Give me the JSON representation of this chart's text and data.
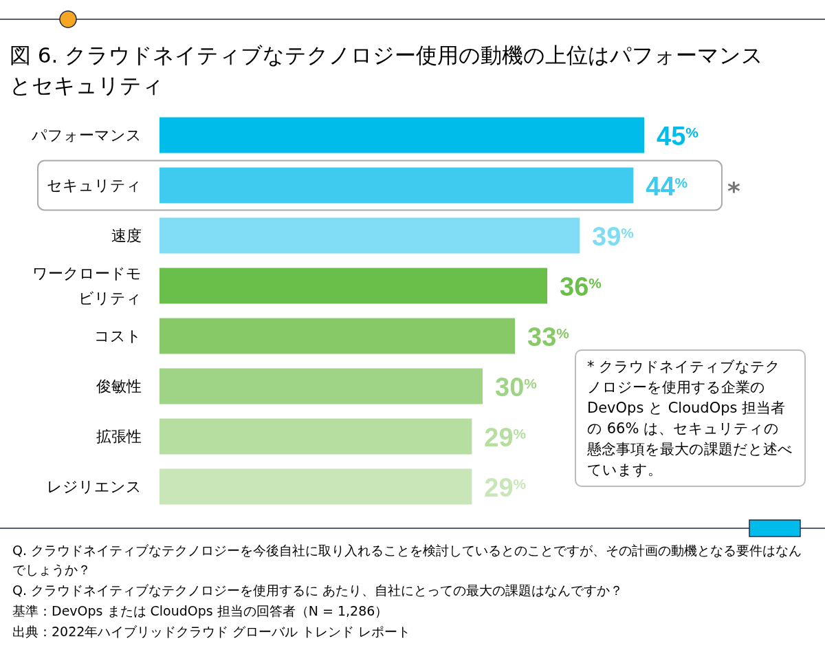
{
  "chart_data": {
    "type": "bar",
    "orientation": "horizontal",
    "title": "図 6. クラウドネイティブなテクノロジー使用の動機の上位はパフォーマンスとセキュリティ",
    "categories": [
      "パフォーマンス",
      "セキュリティ",
      "速度",
      "ワークロードモビリティ",
      "コスト",
      "俊敏性",
      "拡張性",
      "レジリエンス"
    ],
    "values": [
      45,
      44,
      39,
      36,
      33,
      30,
      29,
      29
    ],
    "value_labels": [
      "45$^{%}$",
      "44$^{%}$",
      "39$^{%}$",
      "36$^{%}$",
      "33$^{%}$",
      "30$^{%}$",
      "29$^{%}$",
      "29$^{%}$"
    ],
    "colors": [
      "#00bceb",
      "#3fcbef",
      "#7fdcf4",
      "#6abf4b",
      "#87c966",
      "#9fd386",
      "#b5dea0",
      "#c9e6b9"
    ],
    "annotations": [
      "*",
      "* クラウドネイティブなテクノロジーを使用する企業の DevOps と CloudOps 担当者の 66% は、セキュリティの懸念事項を最大の課題だと述べています。",
      "Q. クラウドネイティブなテクノロジーを今後自社に取り入れることを検討しているとのことですが、その計画の動機となる要件はなんでしょうか？",
      "Q. クラウドネイティブなテクノロジーを使用するに あたり、自社にとっての最大の課題はなんですか？",
      "基準：DevOps または CloudOps 担当の回答者（N = 1,286）",
      "出典：2022年ハイブリッドクラウド グローバル トレンド レポート"
    ]
  }
}
